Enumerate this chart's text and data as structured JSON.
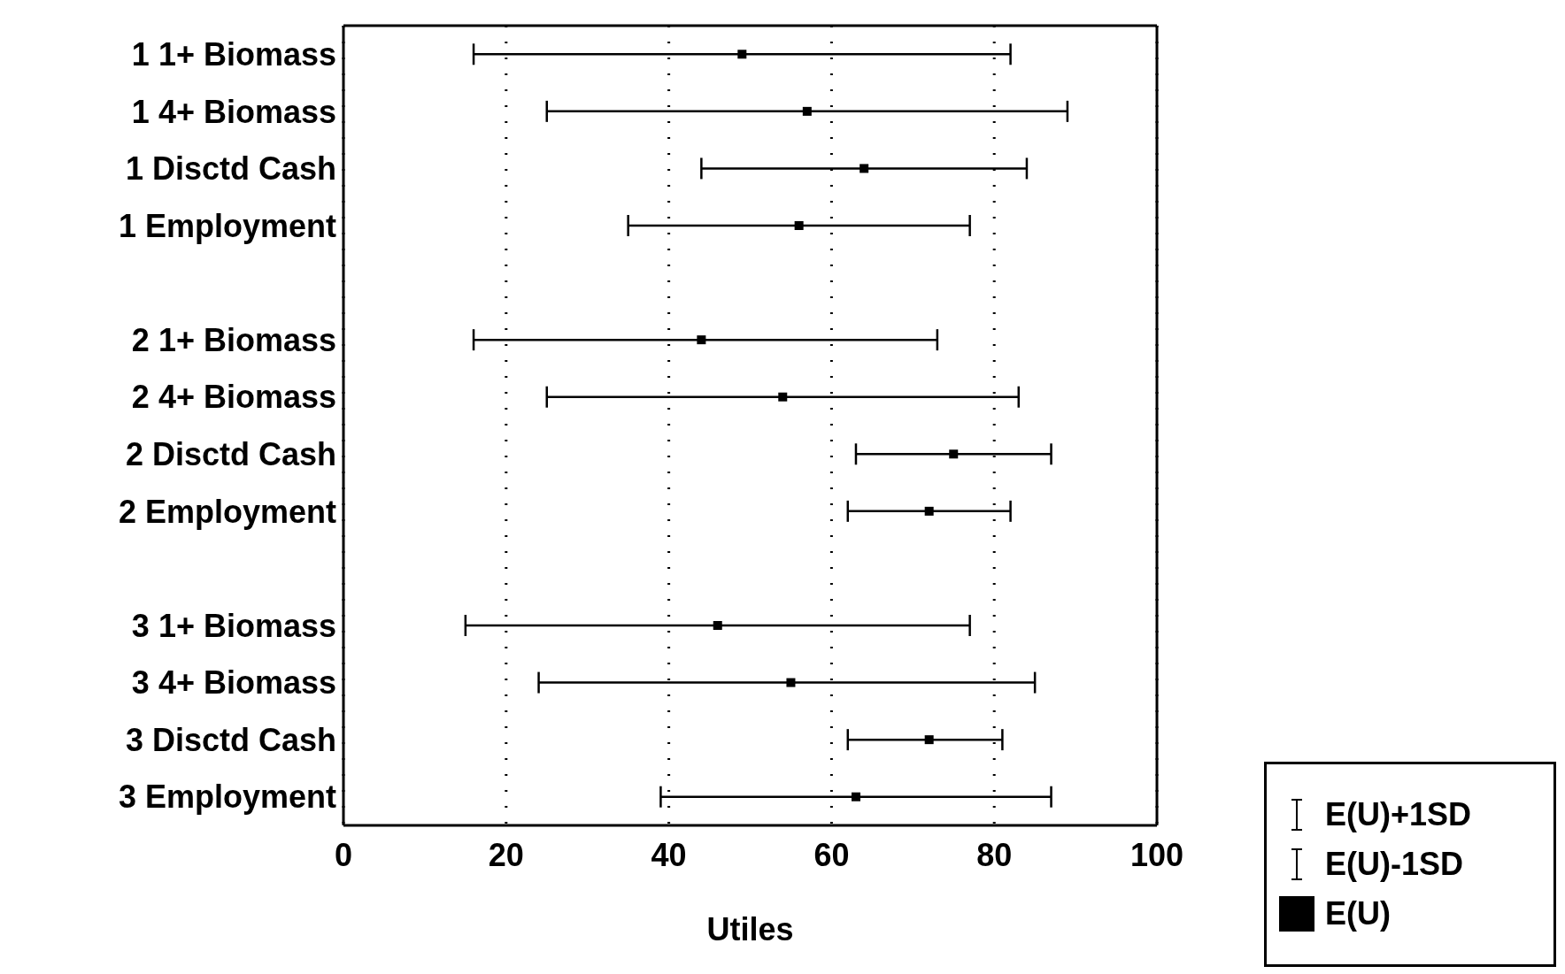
{
  "chart_data": {
    "type": "scatter",
    "orientation": "horizontal",
    "xlabel": "Utiles",
    "categories": [
      "1  1+ Biomass",
      "1  4+ Biomass",
      "1  Disctd Cash",
      "1  Employment",
      null,
      "2  1+ Biomass",
      "2  4+ Biomass",
      "2  Disctd Cash",
      "2  Employment",
      null,
      "3  1+ Biomass",
      "3  4+ Biomass",
      "3  Disctd Cash",
      "3  Employment"
    ],
    "series": [
      {
        "name": "E(U)",
        "color": "#000000",
        "values": [
          49,
          57,
          64,
          56,
          null,
          44,
          54,
          75,
          72,
          null,
          46,
          55,
          72,
          63
        ],
        "errors": [
          [
            16,
            82
          ],
          [
            25,
            89
          ],
          [
            44,
            84
          ],
          [
            35,
            77
          ],
          null,
          [
            16,
            73
          ],
          [
            25,
            83
          ],
          [
            63,
            87
          ],
          [
            62,
            82
          ],
          null,
          [
            15,
            77
          ],
          [
            24,
            85
          ],
          [
            62,
            81
          ],
          [
            39,
            87
          ]
        ]
      }
    ],
    "annotations": [
      "E(U)+1SD",
      "E(U)-1SD"
    ],
    "marker": "square",
    "xlim": [
      0,
      100
    ],
    "xticks": [
      0,
      20,
      40,
      60,
      80,
      100
    ],
    "grid": "x",
    "legend": "bottom right"
  }
}
